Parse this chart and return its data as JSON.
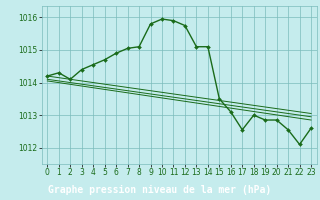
{
  "title": "Graphe pression niveau de la mer (hPa)",
  "background_color": "#c5eced",
  "plot_bg_color": "#c5eced",
  "grid_color": "#7bbcbc",
  "line_color": "#1a6b1a",
  "marker_color": "#1a6b1a",
  "label_bg_color": "#2a6b2a",
  "label_text_color": "#ffffff",
  "xlim": [
    -0.5,
    23.5
  ],
  "ylim": [
    1011.5,
    1016.35
  ],
  "yticks": [
    1012,
    1013,
    1014,
    1015,
    1016
  ],
  "xticks": [
    0,
    1,
    2,
    3,
    4,
    5,
    6,
    7,
    8,
    9,
    10,
    11,
    12,
    13,
    14,
    15,
    16,
    17,
    18,
    19,
    20,
    21,
    22,
    23
  ],
  "series": [
    {
      "x": [
        0,
        1,
        2,
        3,
        4,
        5,
        6,
        7,
        8,
        9,
        10,
        11,
        12,
        13,
        14,
        15,
        16,
        17,
        18,
        19,
        20,
        21,
        22,
        23
      ],
      "y": [
        1014.2,
        1014.3,
        1014.1,
        1014.4,
        1014.55,
        1014.7,
        1014.9,
        1015.05,
        1015.1,
        1015.8,
        1015.95,
        1015.9,
        1015.75,
        1015.1,
        1015.1,
        1013.5,
        1013.1,
        1012.55,
        1013.0,
        1012.85,
        1012.85,
        1012.55,
        1012.1,
        1012.6
      ],
      "with_markers": true,
      "linewidth": 1.0,
      "markersize": 2.0
    },
    {
      "x": [
        0,
        23
      ],
      "y": [
        1014.2,
        1013.05
      ],
      "with_markers": false,
      "linewidth": 0.7
    },
    {
      "x": [
        0,
        23
      ],
      "y": [
        1014.1,
        1012.95
      ],
      "with_markers": false,
      "linewidth": 0.7
    },
    {
      "x": [
        0,
        23
      ],
      "y": [
        1014.05,
        1012.85
      ],
      "with_markers": false,
      "linewidth": 0.7
    }
  ],
  "tick_fontsize": 5.5,
  "label_fontsize": 7.0,
  "ytick_color": "#1a6b1a",
  "xtick_color": "#1a6b1a"
}
